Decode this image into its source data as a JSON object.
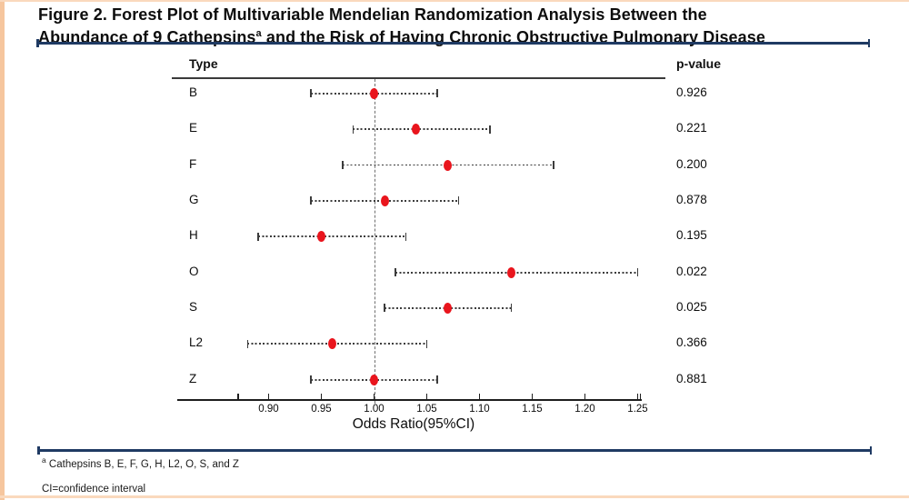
{
  "figure": {
    "title_line1": "Figure 2. Forest Plot of Multivariable Mendelian Randomization Analysis Between the",
    "title_line2_pre": "Abundance of 9 Cathepsins",
    "title_superscript": "a",
    "title_line2_post": " and the Risk of Having Chronic Obstructive Pulmonary Disease"
  },
  "footnotes": {
    "note1_sup": "a",
    "note1_text": " Cathepsins B, E, F, G, H, L2, O, S, and Z",
    "note2": "CI=confidence interval"
  },
  "chart_data": {
    "type": "forest",
    "title": "Forest Plot of Multivariable Mendelian Randomization Analysis Between the Abundance of 9 Cathepsins and the Risk of Having Chronic Obstructive Pulmonary Disease",
    "column_headers": {
      "type": "Type",
      "p_value": "p-value"
    },
    "xlabel": "Odds Ratio(95%CI)",
    "xlim": [
      0.81,
      1.26
    ],
    "reference_line": 1.0,
    "grid": false,
    "legend": false,
    "x_ticks": [
      0.9,
      0.95,
      1.0,
      1.05,
      1.1,
      1.15,
      1.2,
      1.25
    ],
    "x_tick_labels": [
      "0.90",
      "0.95",
      "1.00",
      "1.05",
      "1.10",
      "1.15",
      "1.20",
      "1.25"
    ],
    "rows": [
      {
        "type": "B",
        "or": 1.0,
        "ci_low": 0.94,
        "ci_high": 1.06,
        "p_value": "0.926"
      },
      {
        "type": "E",
        "or": 1.04,
        "ci_low": 0.98,
        "ci_high": 1.11,
        "p_value": "0.221"
      },
      {
        "type": "F",
        "or": 1.07,
        "ci_low": 0.97,
        "ci_high": 1.17,
        "p_value": "0.200"
      },
      {
        "type": "G",
        "or": 1.01,
        "ci_low": 0.94,
        "ci_high": 1.08,
        "p_value": "0.878"
      },
      {
        "type": "H",
        "or": 0.95,
        "ci_low": 0.89,
        "ci_high": 1.03,
        "p_value": "0.195"
      },
      {
        "type": "O",
        "or": 1.13,
        "ci_low": 1.02,
        "ci_high": 1.25,
        "p_value": "0.022"
      },
      {
        "type": "S",
        "or": 1.07,
        "ci_low": 1.01,
        "ci_high": 1.13,
        "p_value": "0.025"
      },
      {
        "type": "L2",
        "or": 0.96,
        "ci_low": 0.88,
        "ci_high": 1.05,
        "p_value": "0.366"
      },
      {
        "type": "Z",
        "or": 1.0,
        "ci_low": 0.94,
        "ci_high": 1.06,
        "p_value": "0.881"
      }
    ],
    "colors": {
      "point": "#e9151d",
      "whisker": "#3c3c3c",
      "reference_line": "#6e6e6e",
      "accent_navy": "#1f3a63",
      "accent_peach": "#f6c69e"
    }
  }
}
